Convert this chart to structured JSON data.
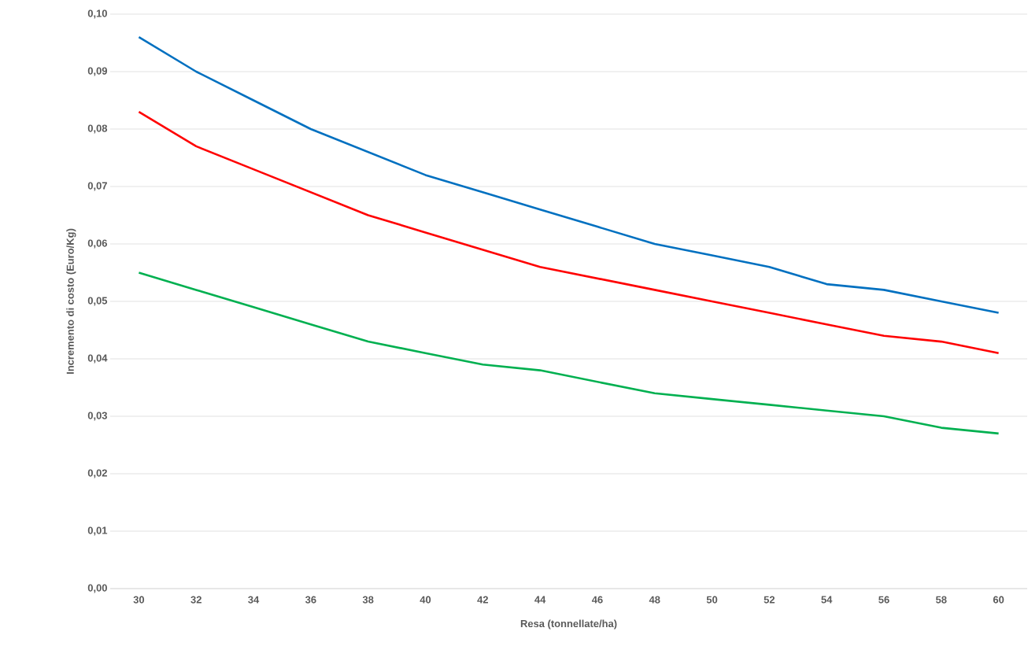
{
  "chart_data": {
    "type": "line",
    "xlabel": "Resa (tonnellate/ha)",
    "ylabel": "Incremento di costo (Euro/Kg)",
    "categories": [
      "30",
      "32",
      "34",
      "36",
      "38",
      "40",
      "42",
      "44",
      "46",
      "48",
      "50",
      "52",
      "54",
      "56",
      "58",
      "60"
    ],
    "series": [
      {
        "color": "#0070c0",
        "values": [
          0.096,
          0.09,
          0.085,
          0.08,
          0.076,
          0.072,
          0.069,
          0.066,
          0.063,
          0.06,
          0.058,
          0.056,
          0.053,
          0.052,
          0.05,
          0.048
        ]
      },
      {
        "color": "#ff0000",
        "values": [
          0.083,
          0.077,
          0.073,
          0.069,
          0.065,
          0.062,
          0.059,
          0.056,
          0.054,
          0.052,
          0.05,
          0.048,
          0.046,
          0.044,
          0.043,
          0.041
        ]
      },
      {
        "color": "#00b050",
        "values": [
          0.055,
          0.052,
          0.049,
          0.046,
          0.043,
          0.041,
          0.039,
          0.038,
          0.036,
          0.034,
          0.033,
          0.032,
          0.031,
          0.03,
          0.028,
          0.027
        ]
      }
    ],
    "ylim": [
      0,
      0.1
    ],
    "yticks": [
      {
        "value": 0,
        "label": "0,00"
      },
      {
        "value": 0.01,
        "label": "0,01"
      },
      {
        "value": 0.02,
        "label": "0,02"
      },
      {
        "value": 0.03,
        "label": "0,03"
      },
      {
        "value": 0.04,
        "label": "0,04"
      },
      {
        "value": 0.05,
        "label": "0,05"
      },
      {
        "value": 0.06,
        "label": "0,06"
      },
      {
        "value": 0.07,
        "label": "0,07"
      },
      {
        "value": 0.08,
        "label": "0,08"
      },
      {
        "value": 0.09,
        "label": "0,09"
      },
      {
        "value": 0.1,
        "label": "0,10"
      }
    ],
    "grid": "y",
    "marker": "none",
    "line_style": "solid"
  }
}
